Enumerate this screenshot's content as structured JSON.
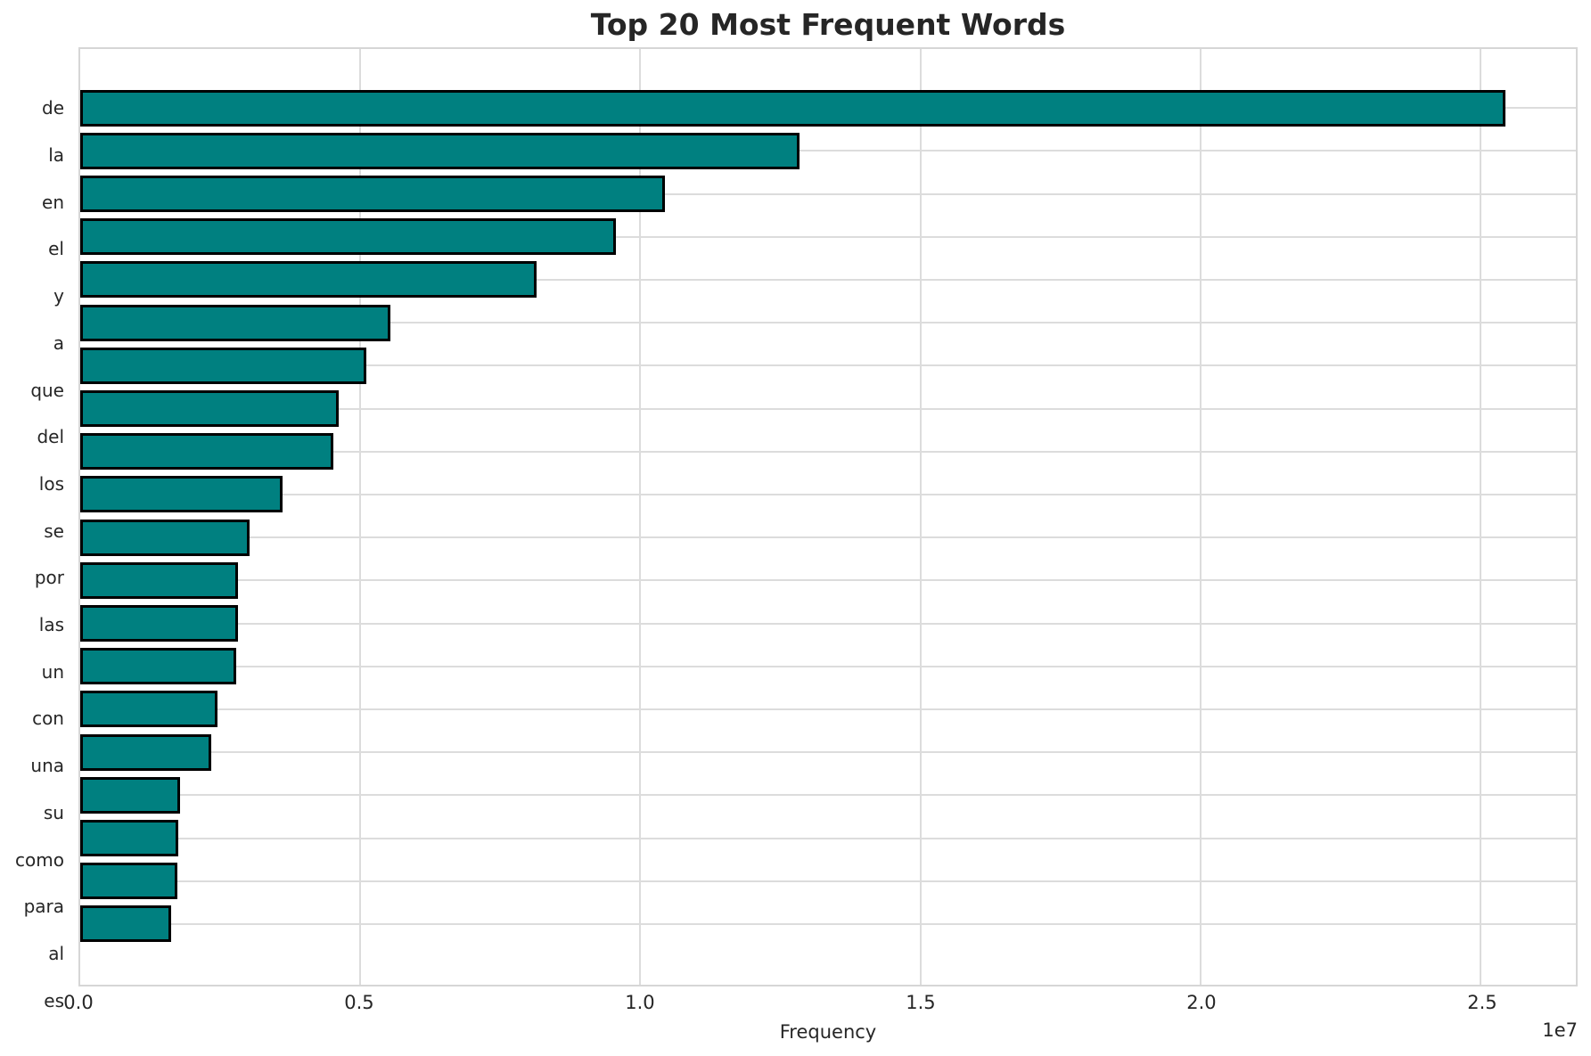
{
  "title": "Top 20 Most Frequent Words",
  "chart_data": {
    "type": "bar",
    "orientation": "horizontal",
    "title": "Top 20 Most Frequent Words",
    "xlabel": "Frequency",
    "ylabel": "",
    "categories": [
      "de",
      "la",
      "en",
      "el",
      "y",
      "a",
      "que",
      "del",
      "los",
      "se",
      "por",
      "las",
      "un",
      "con",
      "una",
      "su",
      "como",
      "para",
      "al",
      "es"
    ],
    "values": [
      25450000,
      12840000,
      10440000,
      9560000,
      8150000,
      5540000,
      5110000,
      4620000,
      4520000,
      3610000,
      3020000,
      2820000,
      2810000,
      2790000,
      2455000,
      2340000,
      1790000,
      1745000,
      1740000,
      1620000
    ],
    "xlim": [
      0,
      26700000
    ],
    "x_ticks": [
      0,
      5000000,
      10000000,
      15000000,
      20000000,
      25000000
    ],
    "x_tick_labels": [
      "0.0",
      "0.5",
      "1.0",
      "1.5",
      "2.0",
      "2.5"
    ],
    "offset_text": "1e7",
    "grid": true,
    "legend": "none",
    "bar_color": "#008080",
    "bar_edge_color": "#000000",
    "grid_color": "#dcdcdc",
    "text_color": "#262626"
  }
}
